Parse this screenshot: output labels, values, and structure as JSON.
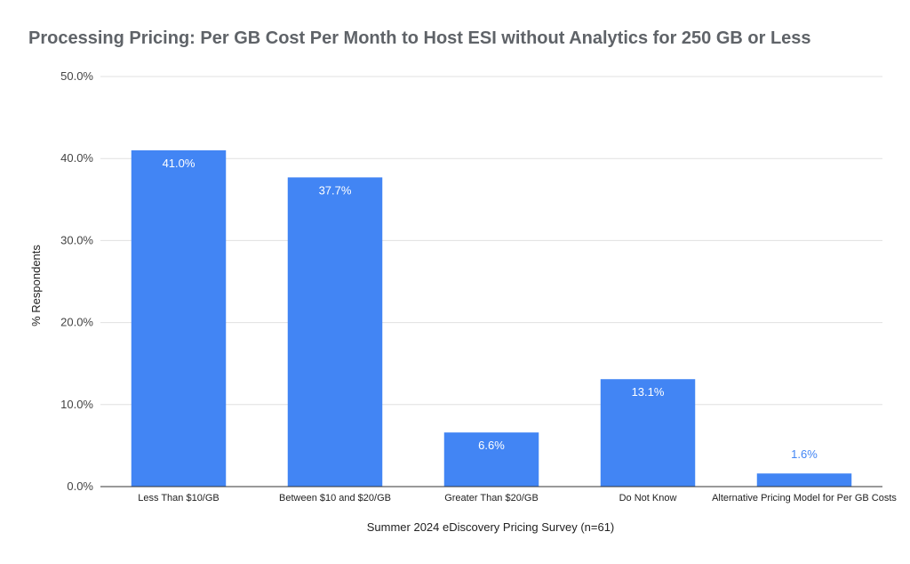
{
  "chart_data": {
    "type": "bar",
    "title": "Processing Pricing: Per GB Cost Per Month to Host ESI without Analytics for 250 GB or Less",
    "xlabel": "Summer 2024 eDiscovery Pricing Survey (n=61)",
    "ylabel": "% Respondents",
    "categories": [
      "Less Than $10/GB",
      "Between $10 and $20/GB",
      "Greater Than $20/GB",
      "Do Not Know",
      "Alternative Pricing Model for Per GB Costs"
    ],
    "values": [
      41.0,
      37.7,
      6.6,
      13.1,
      1.6
    ],
    "value_labels": [
      "41.0%",
      "37.7%",
      "6.6%",
      "13.1%",
      "1.6%"
    ],
    "ylim": [
      0,
      50
    ],
    "yticks": [
      0,
      10,
      20,
      30,
      40,
      50
    ],
    "ytick_labels": [
      "0.0%",
      "10.0%",
      "20.0%",
      "30.0%",
      "40.0%",
      "50.0%"
    ],
    "grid": true,
    "legend": "none",
    "colors": {
      "bar": "#4285f4",
      "label_inside": "#ffffff",
      "label_outside": "#4285f4",
      "grid": "#e0e0e0",
      "axis": "#333333"
    }
  }
}
